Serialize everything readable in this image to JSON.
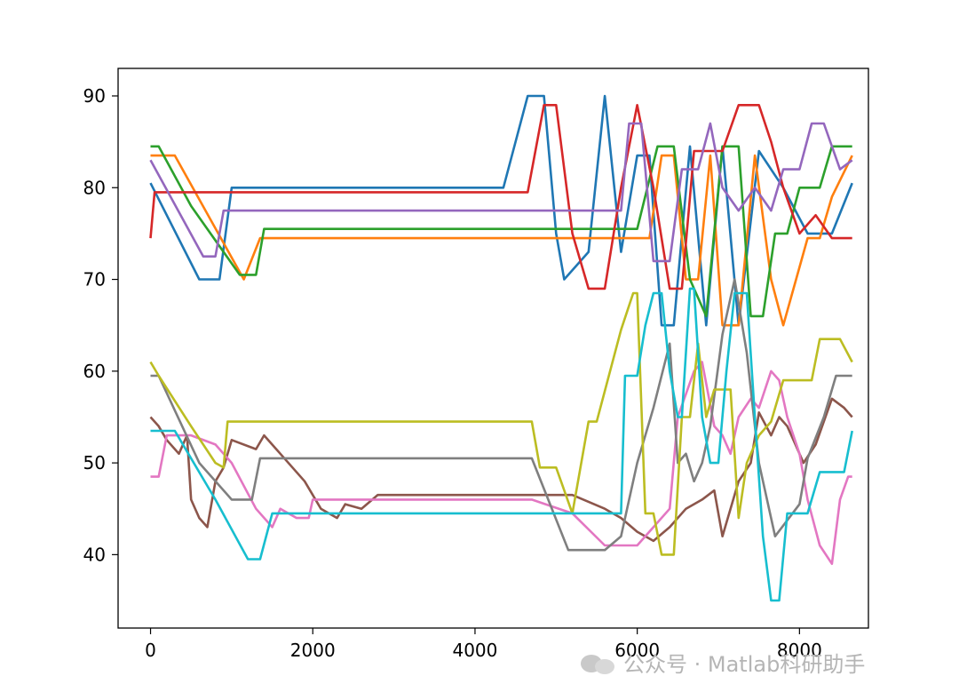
{
  "chart_data": {
    "type": "line",
    "xlim": [
      -400,
      8850
    ],
    "ylim": [
      32,
      93
    ],
    "xticks": [
      0,
      2000,
      4000,
      6000,
      8000
    ],
    "yticks": [
      40,
      50,
      60,
      70,
      80,
      90
    ],
    "xtick_labels": [
      "0",
      "2000",
      "4000",
      "6000",
      "8000"
    ],
    "ytick_labels": [
      "40",
      "50",
      "60",
      "70",
      "80",
      "90"
    ],
    "grid": false,
    "series": [
      {
        "color": "#1f77b4",
        "x": [
          0,
          600,
          850,
          1000,
          4350,
          4650,
          4850,
          5000,
          5100,
          5400,
          5600,
          5800,
          6000,
          6150,
          6300,
          6450,
          6650,
          6850,
          7050,
          7250,
          7500,
          7800,
          8100,
          8250,
          8400,
          8650
        ],
        "y": [
          80.5,
          70,
          70,
          80,
          80,
          90,
          90,
          75,
          70,
          73,
          90,
          73,
          83.5,
          83.5,
          65,
          65,
          84.5,
          65,
          84.5,
          65,
          84,
          80,
          75,
          75,
          75,
          80.5
        ]
      },
      {
        "color": "#ff7f0e",
        "x": [
          0,
          300,
          1150,
          1350,
          5000,
          6000,
          6150,
          6300,
          6450,
          6600,
          6750,
          6900,
          7050,
          7250,
          7450,
          7650,
          7800,
          8100,
          8250,
          8400,
          8650
        ],
        "y": [
          83.5,
          83.5,
          70,
          74.5,
          74.5,
          74.5,
          74.5,
          83.5,
          83.5,
          70,
          70,
          83.5,
          65,
          65,
          83.5,
          70,
          65,
          74.5,
          74.5,
          79,
          83.5
        ]
      },
      {
        "color": "#2ca02c",
        "x": [
          0,
          100,
          500,
          1100,
          1300,
          1400,
          4800,
          5200,
          5900,
          6000,
          6250,
          6450,
          6650,
          6850,
          7050,
          7250,
          7400,
          7550,
          7700,
          7850,
          8000,
          8100,
          8250,
          8400,
          8650
        ],
        "y": [
          84.5,
          84.5,
          78,
          70.5,
          70.5,
          75.5,
          75.5,
          75.5,
          75.5,
          75.5,
          84.5,
          84.5,
          70,
          66,
          84.5,
          84.5,
          66,
          66,
          75,
          75,
          80,
          80,
          80,
          84.5,
          84.5
        ]
      },
      {
        "color": "#d62728",
        "x": [
          0,
          50,
          100,
          4650,
          4850,
          5000,
          5200,
          5400,
          5600,
          5800,
          6000,
          6200,
          6400,
          6550,
          6700,
          6900,
          7050,
          7250,
          7500,
          7650,
          7800,
          8000,
          8200,
          8400,
          8650
        ],
        "y": [
          74.5,
          79.5,
          79.5,
          79.5,
          89,
          89,
          75,
          69,
          69,
          80,
          89,
          80,
          69,
          69,
          84,
          84,
          84,
          89,
          89,
          85,
          80,
          75,
          77,
          74.5,
          74.5
        ]
      },
      {
        "color": "#9467bd",
        "x": [
          0,
          650,
          800,
          900,
          1200,
          5400,
          5600,
          5800,
          5900,
          6050,
          6200,
          6400,
          6550,
          6750,
          6900,
          7050,
          7250,
          7450,
          7650,
          7800,
          8000,
          8150,
          8300,
          8500,
          8650
        ],
        "y": [
          83,
          72.5,
          72.5,
          77.5,
          77.5,
          77.5,
          77.5,
          77.5,
          87,
          87,
          72,
          72,
          82,
          82,
          87,
          80,
          77.5,
          80,
          77.5,
          82,
          82,
          87,
          87,
          82,
          83
        ]
      },
      {
        "color": "#8c564b",
        "x": [
          0,
          100,
          200,
          350,
          450,
          500,
          600,
          700,
          800,
          900,
          1000,
          1300,
          1400,
          1600,
          1900,
          2100,
          2300,
          2400,
          2600,
          2800,
          3000,
          4000,
          5200,
          5600,
          5800,
          6000,
          6200,
          6400,
          6600,
          6800,
          6950,
          7050,
          7150,
          7250,
          7400,
          7500,
          7650,
          7750,
          7850,
          7950,
          8050,
          8200,
          8400,
          8550,
          8650
        ],
        "y": [
          55,
          54,
          52.5,
          51,
          53,
          46,
          44,
          43,
          48,
          49.5,
          52.5,
          51.5,
          53,
          51,
          48,
          45,
          44,
          45.5,
          45,
          46.5,
          46.5,
          46.5,
          46.5,
          45,
          44,
          42.5,
          41.5,
          43,
          45,
          46,
          47,
          42,
          45,
          48,
          50,
          55.5,
          53,
          55,
          54,
          52,
          50,
          52,
          57,
          56,
          55
        ]
      },
      {
        "color": "#e377c2",
        "x": [
          0,
          100,
          200,
          500,
          800,
          1000,
          1300,
          1500,
          1600,
          1800,
          1950,
          2000,
          2200,
          3000,
          4700,
          5200,
          5600,
          5800,
          6000,
          6200,
          6400,
          6500,
          6700,
          6800,
          6950,
          7050,
          7150,
          7250,
          7400,
          7500,
          7650,
          7750,
          7850,
          8000,
          8100,
          8250,
          8400,
          8500,
          8600,
          8650
        ],
        "y": [
          48.5,
          48.5,
          53,
          53,
          52,
          50,
          45,
          43,
          45,
          44,
          44,
          46,
          46,
          46,
          46,
          44.5,
          41,
          41,
          41,
          43,
          45,
          55,
          60,
          61,
          54,
          53,
          51,
          55,
          57,
          56,
          60,
          59,
          55,
          51,
          46,
          41,
          39,
          46,
          48.5,
          48.5
        ]
      },
      {
        "color": "#7f7f7f",
        "x": [
          0,
          100,
          600,
          1000,
          1100,
          1250,
          1350,
          1400,
          4700,
          5150,
          5300,
          5600,
          5800,
          6000,
          6200,
          6400,
          6500,
          6600,
          6700,
          6800,
          6900,
          7050,
          7200,
          7350,
          7500,
          7700,
          8000,
          8100,
          8300,
          8450,
          8550,
          8650
        ],
        "y": [
          59.5,
          59.5,
          50,
          46,
          46,
          46,
          50.5,
          50.5,
          50.5,
          40.5,
          40.5,
          40.5,
          42,
          50,
          56,
          63,
          50,
          51,
          48,
          50,
          54,
          64,
          70,
          62,
          50,
          42,
          45.5,
          50.5,
          55,
          59.5,
          59.5,
          59.5
        ]
      },
      {
        "color": "#bcbd22",
        "x": [
          0,
          100,
          500,
          800,
          900,
          950,
          1000,
          4700,
          4800,
          5000,
          5200,
          5400,
          5500,
          5800,
          5950,
          6000,
          6100,
          6200,
          6300,
          6450,
          6550,
          6650,
          6750,
          6850,
          6950,
          7050,
          7150,
          7250,
          7350,
          7500,
          7650,
          7800,
          8000,
          8150,
          8250,
          8400,
          8500,
          8650
        ],
        "y": [
          61,
          59.5,
          54,
          50,
          49.5,
          54.5,
          54.5,
          54.5,
          49.5,
          49.5,
          44.5,
          54.5,
          54.5,
          64.5,
          68.5,
          68.5,
          44.5,
          44.5,
          40,
          40,
          55,
          55,
          63,
          55,
          58,
          58,
          58,
          44,
          50,
          53,
          54.5,
          59,
          59,
          59,
          63.5,
          63.5,
          63.5,
          61
        ]
      },
      {
        "color": "#17becf",
        "x": [
          0,
          300,
          800,
          1200,
          1350,
          1500,
          2000,
          3000,
          4000,
          5000,
          5800,
          5850,
          6000,
          6100,
          6200,
          6300,
          6400,
          6500,
          6550,
          6650,
          6700,
          6800,
          6900,
          7000,
          7100,
          7200,
          7350,
          7450,
          7550,
          7650,
          7750,
          7850,
          8000,
          8100,
          8250,
          8400,
          8550,
          8650
        ],
        "y": [
          53.5,
          53.5,
          46,
          39.5,
          39.5,
          44.5,
          44.5,
          44.5,
          44.5,
          44.5,
          44.5,
          59.5,
          59.5,
          65,
          68.5,
          68.5,
          60,
          55,
          55,
          69,
          69,
          55,
          50,
          50,
          60,
          68.5,
          68.5,
          55,
          42,
          35,
          35,
          44.5,
          44.5,
          44.5,
          49,
          49,
          49,
          53.5
        ]
      }
    ]
  },
  "watermark": {
    "icon": "wechat-icon",
    "text": "公众号 · Matlab科研助手"
  }
}
